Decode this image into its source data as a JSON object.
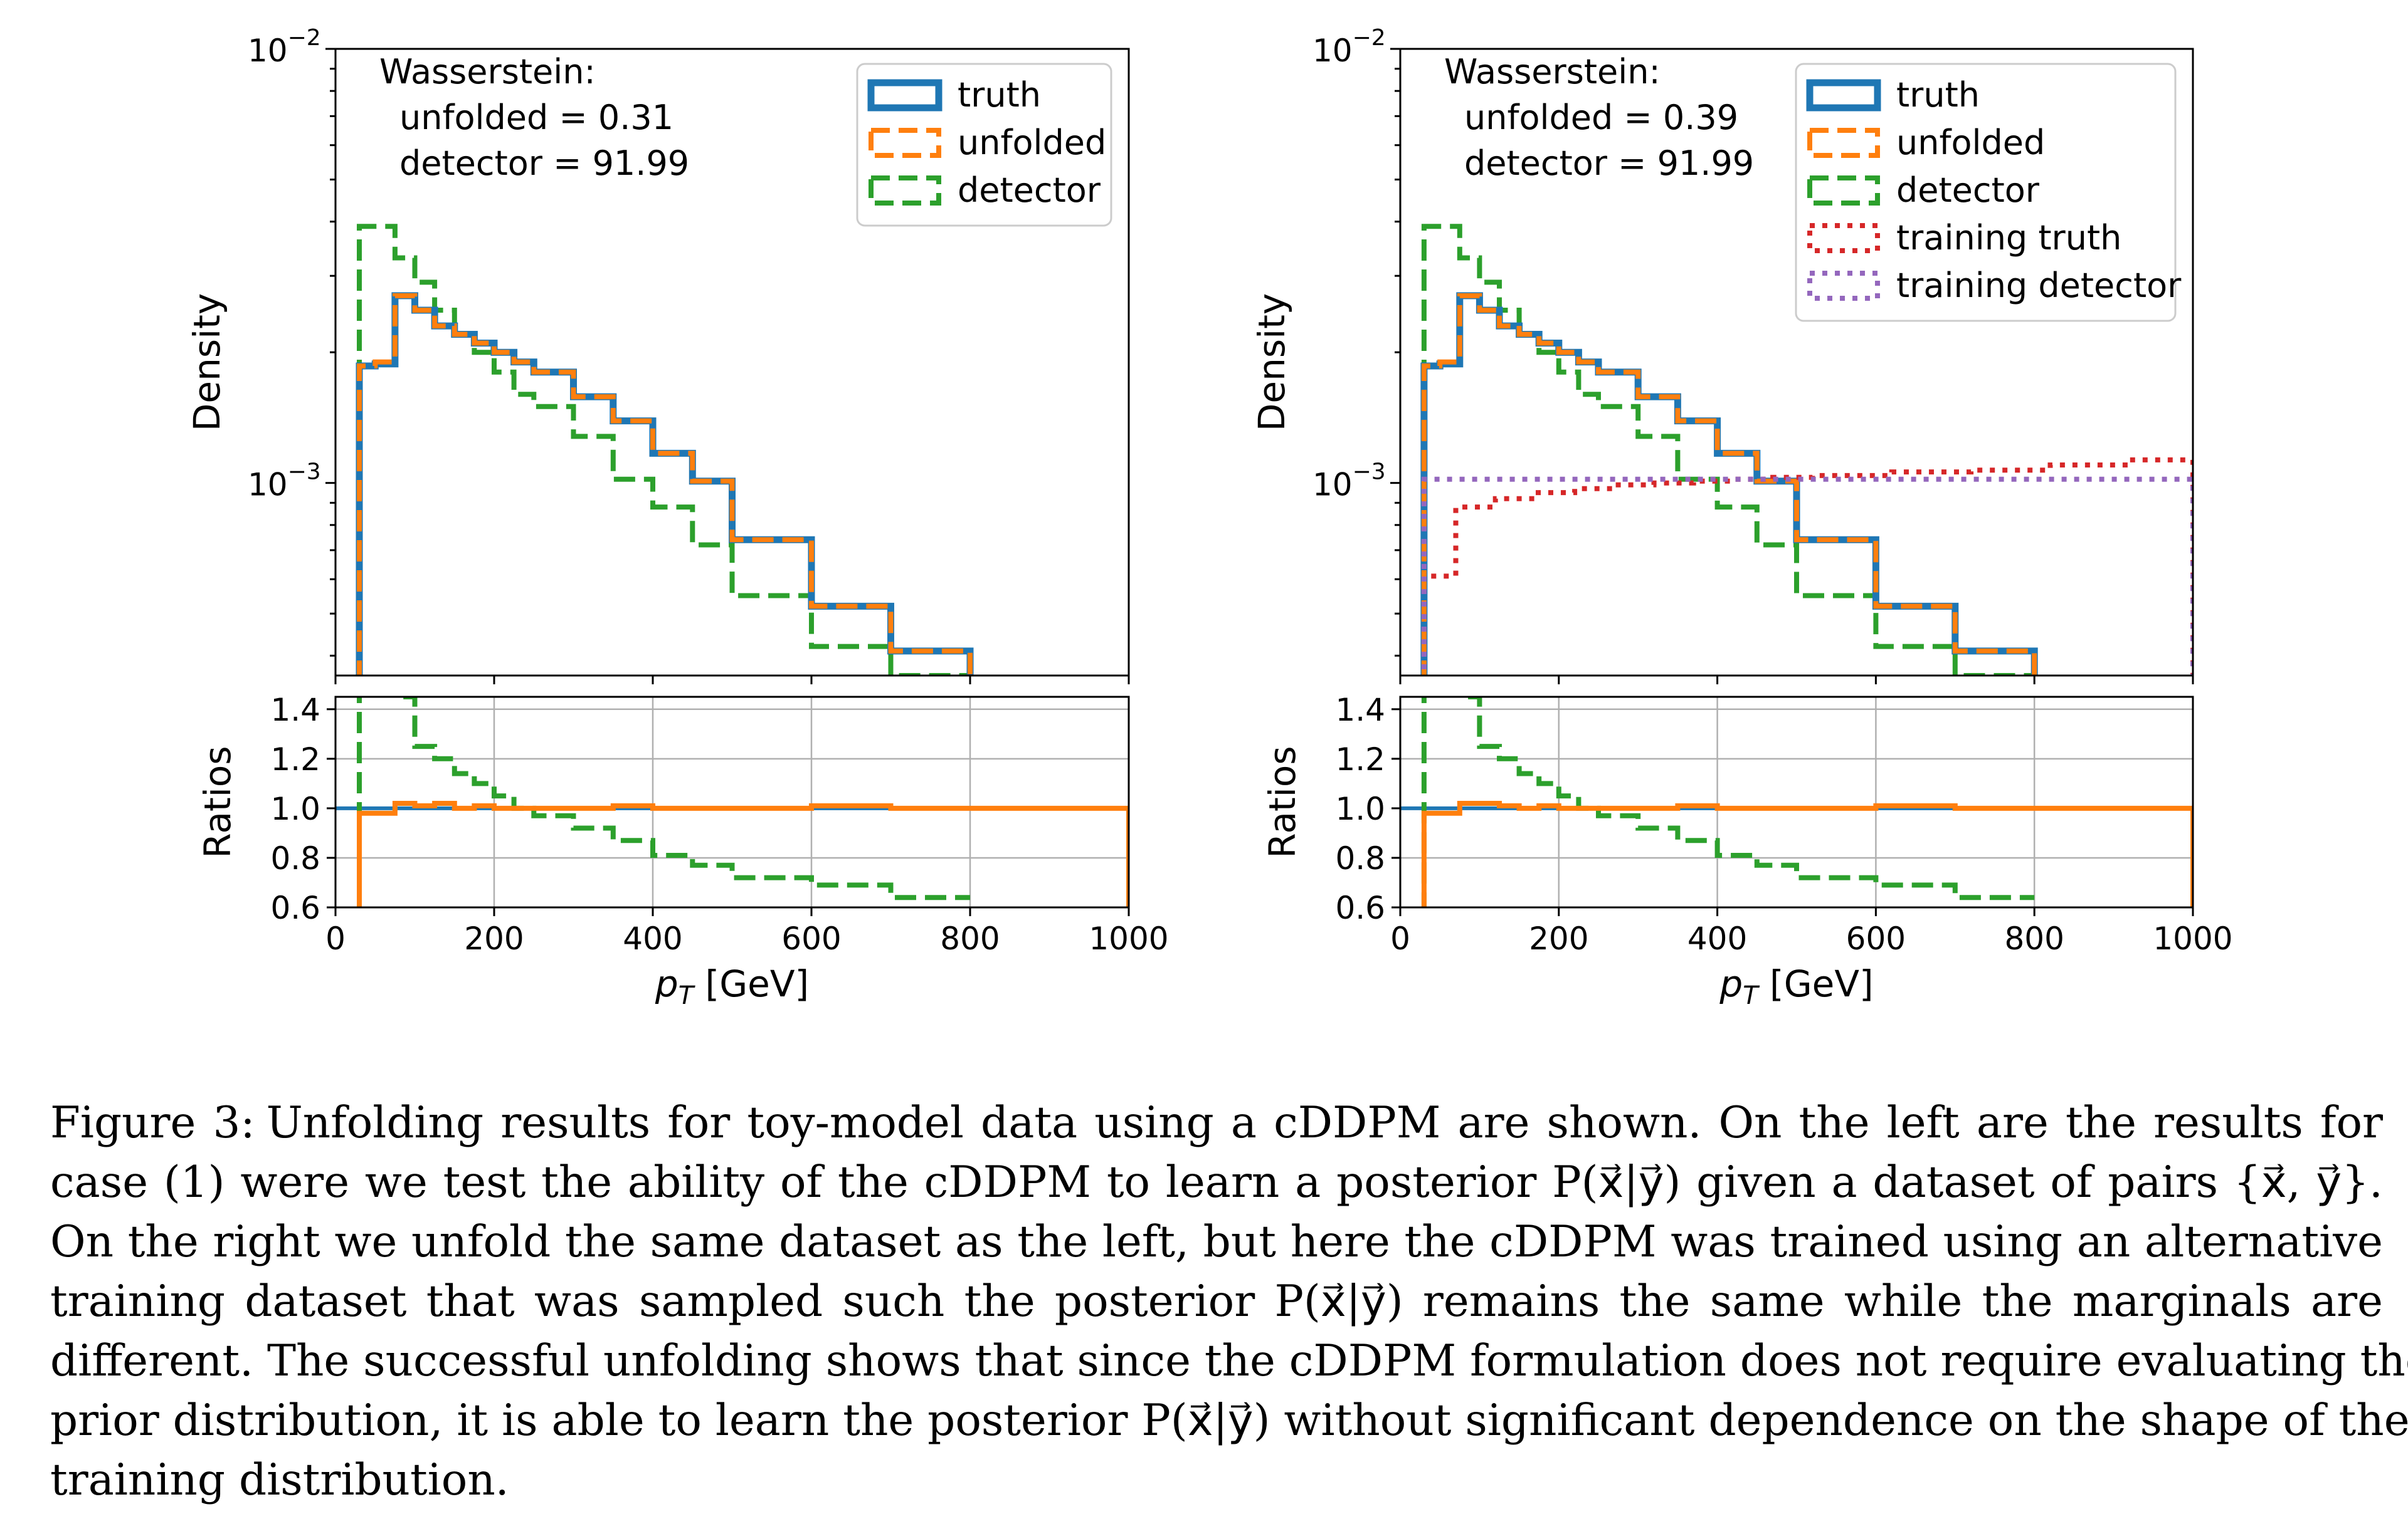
{
  "chart_data": [
    {
      "type": "line",
      "panel": "left",
      "xlabel": "p_T [GeV]",
      "xlim": [
        0,
        1000
      ],
      "xticks": [
        "0",
        "200",
        "400",
        "600",
        "800",
        "1000"
      ],
      "main": {
        "ylabel": "Density",
        "yscale": "log",
        "ylim": [
          0.00036,
          0.01
        ],
        "ytick_labels": [
          {
            "base": "10",
            "exp": "−2",
            "value": 0.01
          },
          {
            "base": "10",
            "exp": "−3",
            "value": 0.001
          }
        ],
        "annotation": [
          "Wasserstein:",
          "unfolded = 0.31",
          "detector = 91.99"
        ],
        "legend_position": "upper-right",
        "series": [
          {
            "name": "truth",
            "color": "#1f77b4",
            "style": "solid",
            "edges": [
              30,
              50,
              75,
              100,
              125,
              150,
              175,
              200,
              225,
              250,
              300,
              350,
              400,
              450,
              500,
              600,
              700,
              800
            ],
            "values": [
              0.00186,
              0.00188,
              0.0027,
              0.0025,
              0.0023,
              0.0022,
              0.0021,
              0.002,
              0.0019,
              0.0018,
              0.00158,
              0.00139,
              0.00117,
              0.00101,
              0.00074,
              0.00052,
              0.00041
            ]
          },
          {
            "name": "unfolded",
            "color": "#ff7f0e",
            "style": "dashed",
            "edges": [
              30,
              50,
              75,
              100,
              125,
              150,
              175,
              200,
              225,
              250,
              300,
              350,
              400,
              450,
              500,
              600,
              700,
              800
            ],
            "values": [
              0.00186,
              0.0019,
              0.0027,
              0.0025,
              0.0023,
              0.0022,
              0.0021,
              0.002,
              0.0019,
              0.0018,
              0.00158,
              0.00139,
              0.00117,
              0.00101,
              0.00074,
              0.00052,
              0.00041
            ]
          },
          {
            "name": "detector",
            "color": "#2ca02c",
            "style": "dashed",
            "edges": [
              30,
              50,
              75,
              100,
              125,
              150,
              175,
              200,
              225,
              250,
              300,
              350,
              400,
              450,
              500,
              600,
              700,
              800
            ],
            "values": [
              0.0039,
              0.0039,
              0.0033,
              0.0029,
              0.0025,
              0.0022,
              0.002,
              0.0018,
              0.0016,
              0.0015,
              0.00128,
              0.00102,
              0.00088,
              0.00072,
              0.00055,
              0.00042,
              0.00035
            ]
          }
        ]
      },
      "ratio": {
        "ylabel": "Ratios",
        "ylim": [
          0.6,
          1.45
        ],
        "yticks": [
          "0.6",
          "0.8",
          "1.0",
          "1.2",
          "1.4"
        ],
        "series": [
          {
            "name": "truth",
            "color": "#1f77b4",
            "style": "solid",
            "edges": [
              0,
              30,
              1000
            ],
            "values": [
              1.0,
              1.0
            ]
          },
          {
            "name": "unfolded",
            "color": "#ff7f0e",
            "style": "solid",
            "edges": [
              30,
              75,
              100,
              125,
              150,
              175,
              200,
              250,
              300,
              350,
              400,
              450,
              500,
              600,
              700,
              800,
              1000
            ],
            "values": [
              0.98,
              1.02,
              1.01,
              1.02,
              1.0,
              1.01,
              1.0,
              1.0,
              1.0,
              1.01,
              1.0,
              1.0,
              1.0,
              1.01,
              1.0,
              1.0
            ]
          },
          {
            "name": "detector",
            "color": "#2ca02c",
            "style": "dashed",
            "edges": [
              30,
              75,
              100,
              125,
              150,
              175,
              200,
              225,
              250,
              300,
              350,
              400,
              450,
              500,
              600,
              700,
              800
            ],
            "values": [
              2.1,
              1.45,
              1.25,
              1.2,
              1.14,
              1.1,
              1.05,
              1.0,
              0.97,
              0.92,
              0.87,
              0.81,
              0.77,
              0.72,
              0.69,
              0.64
            ]
          }
        ]
      }
    },
    {
      "type": "line",
      "panel": "right",
      "xlabel": "p_T [GeV]",
      "xlim": [
        0,
        1000
      ],
      "xticks": [
        "0",
        "200",
        "400",
        "600",
        "800",
        "1000"
      ],
      "main": {
        "ylabel": "Density",
        "yscale": "log",
        "ylim": [
          0.00036,
          0.01
        ],
        "ytick_labels": [
          {
            "base": "10",
            "exp": "−2",
            "value": 0.01
          },
          {
            "base": "10",
            "exp": "−3",
            "value": 0.001
          }
        ],
        "annotation": [
          "Wasserstein:",
          "unfolded = 0.39",
          "detector = 91.99"
        ],
        "legend_position": "upper-right",
        "series": [
          {
            "name": "truth",
            "color": "#1f77b4",
            "style": "solid",
            "edges": [
              30,
              50,
              75,
              100,
              125,
              150,
              175,
              200,
              225,
              250,
              300,
              350,
              400,
              450,
              500,
              600,
              700,
              800
            ],
            "values": [
              0.00186,
              0.00188,
              0.0027,
              0.0025,
              0.0023,
              0.0022,
              0.0021,
              0.002,
              0.0019,
              0.0018,
              0.00158,
              0.00139,
              0.00117,
              0.00101,
              0.00074,
              0.00052,
              0.00041
            ]
          },
          {
            "name": "unfolded",
            "color": "#ff7f0e",
            "style": "dashed",
            "edges": [
              30,
              50,
              75,
              100,
              125,
              150,
              175,
              200,
              225,
              250,
              300,
              350,
              400,
              450,
              500,
              600,
              700,
              800
            ],
            "values": [
              0.00186,
              0.0019,
              0.0027,
              0.0025,
              0.0023,
              0.0022,
              0.0021,
              0.002,
              0.0019,
              0.0018,
              0.00158,
              0.00139,
              0.00117,
              0.00101,
              0.00074,
              0.00052,
              0.00041
            ]
          },
          {
            "name": "detector",
            "color": "#2ca02c",
            "style": "dashed",
            "edges": [
              30,
              50,
              75,
              100,
              125,
              150,
              175,
              200,
              225,
              250,
              300,
              350,
              400,
              450,
              500,
              600,
              700,
              800
            ],
            "values": [
              0.0039,
              0.0039,
              0.0033,
              0.0029,
              0.0025,
              0.0022,
              0.002,
              0.0018,
              0.0016,
              0.0015,
              0.00128,
              0.00102,
              0.00088,
              0.00072,
              0.00055,
              0.00042,
              0.00035
            ]
          },
          {
            "name": "training truth",
            "color": "#d62728",
            "style": "dotted",
            "edges": [
              30,
              70,
              120,
              170,
              220,
              270,
              320,
              370,
              420,
              470,
              520,
              620,
              720,
              820,
              920,
              1000
            ],
            "values": [
              0.00061,
              0.00088,
              0.00092,
              0.00095,
              0.00097,
              0.00099,
              0.001,
              0.00101,
              0.00102,
              0.00103,
              0.00104,
              0.00106,
              0.00107,
              0.0011,
              0.00113
            ]
          },
          {
            "name": "training detector",
            "color": "#9467bd",
            "style": "dotted",
            "edges": [
              30,
              1000
            ],
            "values": [
              0.00102
            ]
          }
        ]
      },
      "ratio": {
        "ylabel": "Ratios",
        "ylim": [
          0.6,
          1.45
        ],
        "yticks": [
          "0.6",
          "0.8",
          "1.0",
          "1.2",
          "1.4"
        ],
        "series": [
          {
            "name": "truth",
            "color": "#1f77b4",
            "style": "solid",
            "edges": [
              0,
              30,
              1000
            ],
            "values": [
              1.0,
              1.0
            ]
          },
          {
            "name": "unfolded",
            "color": "#ff7f0e",
            "style": "solid",
            "edges": [
              30,
              75,
              100,
              125,
              150,
              175,
              200,
              250,
              300,
              350,
              400,
              450,
              500,
              600,
              700,
              800,
              1000
            ],
            "values": [
              0.98,
              1.02,
              1.02,
              1.01,
              1.0,
              1.01,
              1.0,
              1.0,
              1.0,
              1.01,
              1.0,
              1.0,
              1.0,
              1.01,
              1.0,
              1.0
            ]
          },
          {
            "name": "detector",
            "color": "#2ca02c",
            "style": "dashed",
            "edges": [
              30,
              75,
              100,
              125,
              150,
              175,
              200,
              225,
              250,
              300,
              350,
              400,
              450,
              500,
              600,
              700,
              800
            ],
            "values": [
              2.1,
              1.45,
              1.25,
              1.2,
              1.14,
              1.1,
              1.05,
              1.0,
              0.97,
              0.92,
              0.87,
              0.81,
              0.77,
              0.72,
              0.69,
              0.64
            ]
          }
        ]
      }
    }
  ],
  "caption": {
    "label": "Figure 3:",
    "lines": [
      "Unfolding results for toy-model data using a cDDPM are shown. On the left are the results for",
      "case (1) were we test the ability of the cDDPM to learn a posterior P(x⃗|y⃗) given a dataset of pairs {x⃗, y⃗}.",
      "On the right we unfold the same dataset as the left, but here the cDDPM was trained using an alternative",
      "training dataset that was sampled such the posterior P(x⃗|y⃗) remains the same while the marginals are",
      "different. The successful unfolding shows that since the cDDPM formulation does not require evaluating the",
      "prior distribution, it is able to learn the posterior P(x⃗|y⃗) without significant dependence on the shape of the",
      "training distribution."
    ]
  }
}
